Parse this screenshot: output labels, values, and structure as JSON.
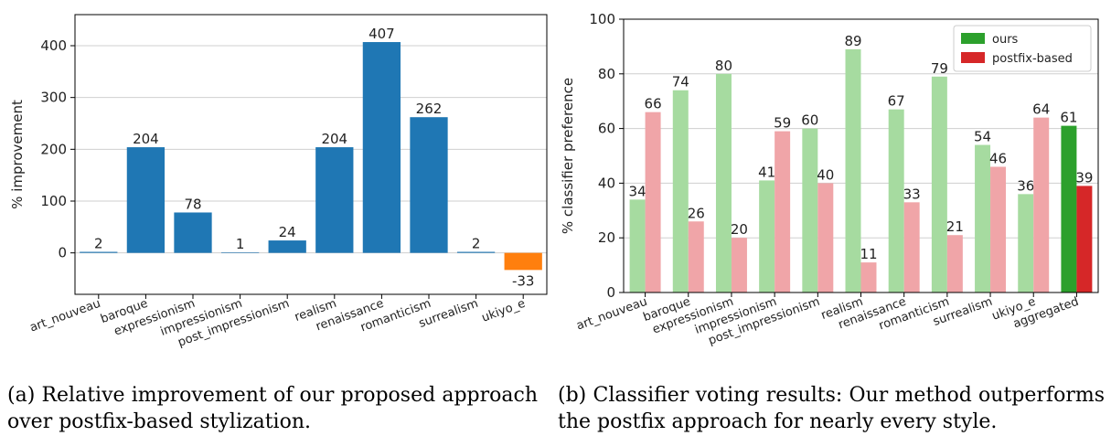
{
  "chart_data": [
    {
      "type": "bar",
      "title": "",
      "xlabel": "",
      "ylabel": "% improvement",
      "ylim": [
        -80,
        460
      ],
      "yticks": [
        0,
        100,
        200,
        300,
        400
      ],
      "grid": true,
      "categories": [
        "art_nouveau",
        "baroque",
        "expressionism",
        "impressionism",
        "post_impressionism",
        "realism",
        "renaissance",
        "romanticism",
        "surrealism",
        "ukiyo_e"
      ],
      "values": [
        2,
        204,
        78,
        1,
        24,
        204,
        407,
        262,
        2,
        -33
      ],
      "colors": [
        "#1f77b4",
        "#1f77b4",
        "#1f77b4",
        "#1f77b4",
        "#1f77b4",
        "#1f77b4",
        "#1f77b4",
        "#1f77b4",
        "#1f77b4",
        "#ff7f0e"
      ]
    },
    {
      "type": "bar",
      "title": "",
      "xlabel": "",
      "ylabel": "% classifier preference",
      "ylim": [
        0,
        100
      ],
      "yticks": [
        0,
        20,
        40,
        60,
        80,
        100
      ],
      "grid": true,
      "legend_position": "top-right",
      "categories": [
        "art_nouveau",
        "baroque",
        "expressionism",
        "impressionism",
        "post_impressionism",
        "realism",
        "renaissance",
        "romanticism",
        "surrealism",
        "ukiyo_e",
        "aggregated"
      ],
      "series": [
        {
          "name": "ours",
          "values": [
            34,
            74,
            80,
            41,
            60,
            89,
            67,
            79,
            54,
            36,
            61
          ],
          "color": "#2ca02c",
          "light_color": "#a6dba0"
        },
        {
          "name": "postfix-based",
          "values": [
            66,
            26,
            20,
            59,
            40,
            11,
            33,
            21,
            46,
            64,
            39
          ],
          "color": "#d62728",
          "light_color": "#f0a5a8"
        }
      ]
    }
  ],
  "captions": {
    "a": "(a) Relative improvement of our proposed approach over postfix-based stylization.",
    "b": "(b) Classifier voting results: Our method outperforms the postfix approach for nearly every style."
  }
}
